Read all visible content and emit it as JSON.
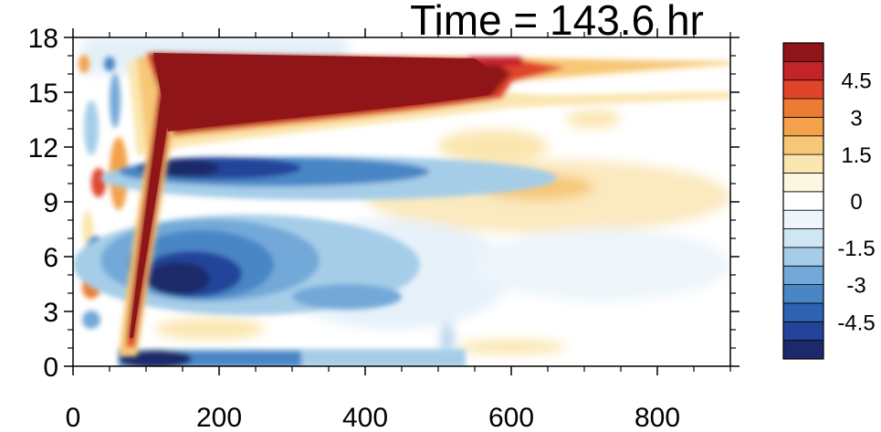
{
  "chart_data": {
    "type": "heatmap",
    "title": "Time = 143.6 hr",
    "xlabel": "",
    "ylabel": "",
    "xlim": [
      0,
      900
    ],
    "ylim": [
      0,
      18
    ],
    "x_ticks": [
      {
        "value": 0,
        "label": "0"
      },
      {
        "value": 200,
        "label": "200"
      },
      {
        "value": 400,
        "label": "400"
      },
      {
        "value": 600,
        "label": "600"
      },
      {
        "value": 800,
        "label": "800"
      }
    ],
    "y_ticks": [
      {
        "value": 0,
        "label": "0"
      },
      {
        "value": 3,
        "label": "3"
      },
      {
        "value": 6,
        "label": "6"
      },
      {
        "value": 9,
        "label": "9"
      },
      {
        "value": 12,
        "label": "12"
      },
      {
        "value": 15,
        "label": "15"
      },
      {
        "value": 18,
        "label": "18"
      }
    ],
    "colorbar": {
      "levels": [
        -5.25,
        -4.5,
        -3.75,
        -3,
        -2.25,
        -1.5,
        -0.75,
        -0.25,
        0.25,
        0.75,
        1.5,
        2.25,
        3,
        3.75,
        4.5,
        5.25
      ],
      "labels": [
        {
          "value": 4.5,
          "label": "4.5"
        },
        {
          "value": 3,
          "label": "3"
        },
        {
          "value": 1.5,
          "label": "1.5"
        },
        {
          "value": 0,
          "label": "0"
        },
        {
          "value": -1.5,
          "label": "-1.5"
        },
        {
          "value": -3,
          "label": "-3"
        },
        {
          "value": -4.5,
          "label": "-4.5"
        }
      ],
      "colors": [
        "#1c2a6b",
        "#23449a",
        "#2e63b4",
        "#4a86c6",
        "#73a9d8",
        "#a5cde8",
        "#cfe6f4",
        "#eef6fb",
        "#ffffff",
        "#fdf6e0",
        "#fbe6b0",
        "#f7c777",
        "#f3a24b",
        "#ec7b33",
        "#e0452a",
        "#c2242a",
        "#8f1518"
      ]
    },
    "features": [
      {
        "name": "upper positive jet",
        "x_range": [
          110,
          900
        ],
        "y_range": [
          11.5,
          17
        ],
        "sign": "positive",
        "peak": 5.5
      },
      {
        "name": "rising positive plume",
        "x_range": [
          70,
          130
        ],
        "y_range": [
          1,
          17
        ],
        "sign": "positive",
        "peak": 5.5
      },
      {
        "name": "negative band below jet",
        "x_range": [
          110,
          600
        ],
        "y_range": [
          9.5,
          12
        ],
        "sign": "negative",
        "peak": -5
      },
      {
        "name": "mid-level negative lobe",
        "x_range": [
          100,
          420
        ],
        "y_range": [
          3,
          8
        ],
        "sign": "negative",
        "peak": -5.5
      },
      {
        "name": "near-surface negative strip",
        "x_range": [
          70,
          500
        ],
        "y_range": [
          0,
          1
        ],
        "sign": "negative",
        "peak": -5.5
      },
      {
        "name": "weak positive region",
        "x_range": [
          450,
          900
        ],
        "y_range": [
          6.5,
          10.5
        ],
        "sign": "positive",
        "peak": 2
      }
    ]
  }
}
